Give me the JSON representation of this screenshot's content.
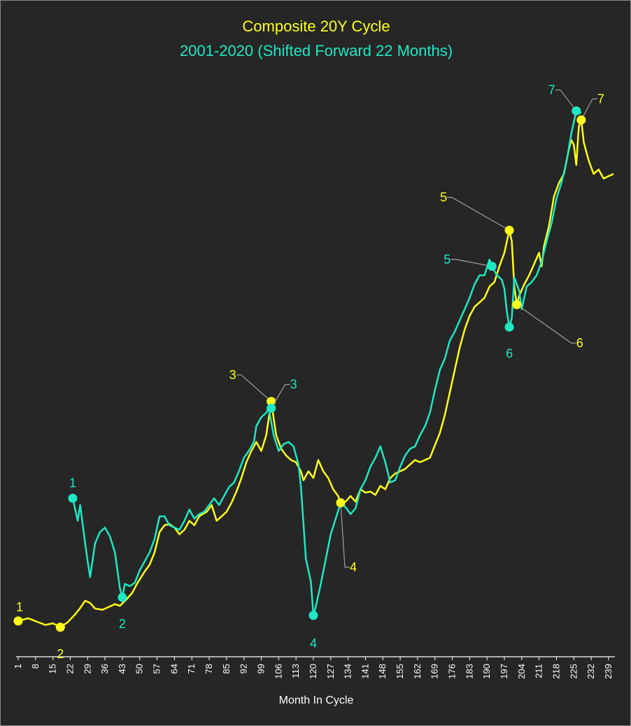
{
  "colors": {
    "background": "#262626",
    "yellow_series": "#ffff1a",
    "teal_series": "#1fe8c4",
    "leader_line": "#a0a0a0",
    "axis": "#ffffff"
  },
  "chart_data": {
    "type": "line",
    "title": "Composite 20Y Cycle",
    "subtitle": "2001-2020 (Shifted Forward 22 Months)",
    "xlabel": "Month In Cycle",
    "ylabel": "",
    "xlim": [
      1,
      241
    ],
    "ylim": [
      0,
      100
    ],
    "y_axis_shown": false,
    "grid": false,
    "legend": "none",
    "x_tick_labels": [
      "1",
      "8",
      "15",
      "22",
      "29",
      "36",
      "43",
      "50",
      "57",
      "64",
      "71",
      "78",
      "85",
      "92",
      "99",
      "106",
      "113",
      "120",
      "127",
      "134",
      "141",
      "148",
      "155",
      "162",
      "169",
      "176",
      "183",
      "190",
      "197",
      "204",
      "211",
      "218",
      "225",
      "232",
      "239"
    ],
    "series": [
      {
        "key": "yellow",
        "color": "#ffff1a",
        "points": [
          [
            1,
            7
          ],
          [
            5,
            7.5
          ],
          [
            9,
            6.8
          ],
          [
            12,
            6.3
          ],
          [
            15,
            6.6
          ],
          [
            18,
            5.9
          ],
          [
            21,
            6.8
          ],
          [
            24,
            8.2
          ],
          [
            26,
            9.3
          ],
          [
            28,
            10.6
          ],
          [
            30,
            10.2
          ],
          [
            32,
            9.2
          ],
          [
            35,
            9.0
          ],
          [
            38,
            9.6
          ],
          [
            40,
            10.0
          ],
          [
            42,
            9.7
          ],
          [
            45,
            11.0
          ],
          [
            47,
            12.0
          ],
          [
            49,
            13.7
          ],
          [
            52,
            15.8
          ],
          [
            54,
            17.0
          ],
          [
            56,
            19.2
          ],
          [
            58,
            22.8
          ],
          [
            60,
            24.0
          ],
          [
            62,
            24.2
          ],
          [
            64,
            23.6
          ],
          [
            66,
            22.4
          ],
          [
            68,
            23.2
          ],
          [
            70,
            24.8
          ],
          [
            72,
            24.0
          ],
          [
            74,
            25.6
          ],
          [
            77,
            26.4
          ],
          [
            79,
            27.6
          ],
          [
            81,
            24.8
          ],
          [
            83,
            25.6
          ],
          [
            85,
            26.4
          ],
          [
            87,
            28.0
          ],
          [
            89,
            30.0
          ],
          [
            91,
            32.4
          ],
          [
            93,
            35.2
          ],
          [
            95,
            37.2
          ],
          [
            97,
            38.8
          ],
          [
            99,
            37.2
          ],
          [
            101,
            40.0
          ],
          [
            103,
            46.0
          ],
          [
            104,
            43.0
          ],
          [
            105,
            40.0
          ],
          [
            107,
            37.6
          ],
          [
            109,
            36.4
          ],
          [
            111,
            35.6
          ],
          [
            113,
            35.2
          ],
          [
            115,
            33.6
          ],
          [
            116,
            32.0
          ],
          [
            118,
            33.6
          ],
          [
            120,
            32.4
          ],
          [
            121,
            34.0
          ],
          [
            122,
            35.6
          ],
          [
            124,
            33.6
          ],
          [
            126,
            32.4
          ],
          [
            128,
            30.4
          ],
          [
            130,
            29.2
          ],
          [
            131,
            28.0
          ],
          [
            133,
            28.2
          ],
          [
            135,
            29.2
          ],
          [
            137,
            28.2
          ],
          [
            139,
            30.4
          ],
          [
            141,
            29.8
          ],
          [
            143,
            30.0
          ],
          [
            145,
            29.4
          ],
          [
            147,
            31.0
          ],
          [
            149,
            30.4
          ],
          [
            151,
            32.4
          ],
          [
            153,
            33.2
          ],
          [
            155,
            33.6
          ],
          [
            157,
            34.0
          ],
          [
            159,
            34.8
          ],
          [
            161,
            35.6
          ],
          [
            163,
            35.2
          ],
          [
            165,
            35.6
          ],
          [
            167,
            36.0
          ],
          [
            169,
            38.2
          ],
          [
            171,
            40.4
          ],
          [
            173,
            43.6
          ],
          [
            175,
            47.6
          ],
          [
            177,
            51.6
          ],
          [
            179,
            55.6
          ],
          [
            181,
            58.8
          ],
          [
            183,
            61.2
          ],
          [
            185,
            62.8
          ],
          [
            187,
            63.6
          ],
          [
            189,
            64.4
          ],
          [
            191,
            66.4
          ],
          [
            193,
            67.2
          ],
          [
            195,
            70.0
          ],
          [
            197,
            72.4
          ],
          [
            199,
            76.4
          ],
          [
            200,
            74.4
          ],
          [
            201,
            66.4
          ],
          [
            202,
            63.2
          ],
          [
            203,
            64.8
          ],
          [
            205,
            66.8
          ],
          [
            207,
            68.4
          ],
          [
            209,
            70.4
          ],
          [
            211,
            72.4
          ],
          [
            212,
            70.0
          ],
          [
            213,
            73.6
          ],
          [
            215,
            77.2
          ],
          [
            217,
            82.4
          ],
          [
            219,
            84.8
          ],
          [
            221,
            86.4
          ],
          [
            223,
            90.8
          ],
          [
            224,
            92.4
          ],
          [
            225,
            91.6
          ],
          [
            226,
            88.0
          ],
          [
            227,
            94.8
          ],
          [
            228,
            96.0
          ],
          [
            229,
            92.0
          ],
          [
            231,
            88.8
          ],
          [
            233,
            86.4
          ],
          [
            235,
            87.2
          ],
          [
            237,
            85.6
          ],
          [
            239,
            86.0
          ],
          [
            241,
            86.4
          ]
        ]
      },
      {
        "key": "teal",
        "color": "#1fe8c4",
        "points": [
          [
            23,
            28.8
          ],
          [
            25,
            24.8
          ],
          [
            26,
            27.6
          ],
          [
            28,
            20.8
          ],
          [
            29,
            17.6
          ],
          [
            30,
            14.8
          ],
          [
            32,
            20.8
          ],
          [
            34,
            22.8
          ],
          [
            36,
            23.6
          ],
          [
            38,
            22.0
          ],
          [
            40,
            19.2
          ],
          [
            42,
            12.8
          ],
          [
            43,
            11.2
          ],
          [
            44,
            13.6
          ],
          [
            46,
            13.2
          ],
          [
            48,
            13.8
          ],
          [
            50,
            16.0
          ],
          [
            52,
            17.6
          ],
          [
            54,
            19.2
          ],
          [
            56,
            21.6
          ],
          [
            58,
            25.6
          ],
          [
            60,
            25.6
          ],
          [
            62,
            24.0
          ],
          [
            64,
            23.6
          ],
          [
            66,
            23.2
          ],
          [
            68,
            24.8
          ],
          [
            70,
            26.8
          ],
          [
            72,
            25.2
          ],
          [
            74,
            26.0
          ],
          [
            76,
            26.4
          ],
          [
            78,
            27.6
          ],
          [
            80,
            28.8
          ],
          [
            82,
            27.6
          ],
          [
            84,
            29.2
          ],
          [
            86,
            30.8
          ],
          [
            88,
            31.6
          ],
          [
            90,
            33.6
          ],
          [
            92,
            36.0
          ],
          [
            94,
            37.2
          ],
          [
            96,
            38.8
          ],
          [
            97,
            41.6
          ],
          [
            99,
            43.2
          ],
          [
            101,
            44.0
          ],
          [
            102,
            44.8
          ],
          [
            104,
            40.0
          ],
          [
            106,
            37.2
          ],
          [
            108,
            38.4
          ],
          [
            110,
            38.8
          ],
          [
            112,
            38.0
          ],
          [
            114,
            34.8
          ],
          [
            115,
            30.8
          ],
          [
            117,
            18.0
          ],
          [
            119,
            14.0
          ],
          [
            120,
            8.0
          ],
          [
            121,
            9.6
          ],
          [
            123,
            13.6
          ],
          [
            125,
            18.0
          ],
          [
            127,
            22.4
          ],
          [
            129,
            25.2
          ],
          [
            131,
            28.0
          ],
          [
            133,
            27.2
          ],
          [
            135,
            26.0
          ],
          [
            137,
            27.0
          ],
          [
            139,
            30.4
          ],
          [
            141,
            32.0
          ],
          [
            143,
            34.4
          ],
          [
            145,
            36.0
          ],
          [
            147,
            38.0
          ],
          [
            149,
            35.2
          ],
          [
            151,
            31.6
          ],
          [
            153,
            32.0
          ],
          [
            155,
            34.4
          ],
          [
            157,
            36.4
          ],
          [
            159,
            37.6
          ],
          [
            161,
            38.0
          ],
          [
            163,
            40.0
          ],
          [
            165,
            41.6
          ],
          [
            167,
            44.0
          ],
          [
            169,
            48.0
          ],
          [
            171,
            51.6
          ],
          [
            173,
            53.6
          ],
          [
            175,
            56.8
          ],
          [
            177,
            58.4
          ],
          [
            179,
            60.4
          ],
          [
            181,
            62.4
          ],
          [
            183,
            64.4
          ],
          [
            185,
            66.8
          ],
          [
            187,
            68.4
          ],
          [
            189,
            68.4
          ],
          [
            191,
            71.2
          ],
          [
            192,
            70.0
          ],
          [
            194,
            68.4
          ],
          [
            196,
            67.6
          ],
          [
            197,
            66.0
          ],
          [
            198,
            62.0
          ],
          [
            199,
            59.2
          ],
          [
            200,
            60.8
          ],
          [
            201,
            68.0
          ],
          [
            203,
            65.6
          ],
          [
            204,
            62.4
          ],
          [
            206,
            66.4
          ],
          [
            208,
            67.2
          ],
          [
            210,
            68.4
          ],
          [
            212,
            70.8
          ],
          [
            214,
            74.4
          ],
          [
            216,
            77.6
          ],
          [
            218,
            82.0
          ],
          [
            220,
            84.8
          ],
          [
            222,
            88.4
          ],
          [
            224,
            93.6
          ],
          [
            226,
            97.6
          ],
          [
            228,
            97.2
          ]
        ]
      }
    ],
    "markers": [
      {
        "series": "yellow",
        "label": "1",
        "x": 1,
        "y": 7.0
      },
      {
        "series": "yellow",
        "label": "2",
        "x": 18,
        "y": 5.9
      },
      {
        "series": "yellow",
        "label": "3",
        "x": 103,
        "y": 46.0
      },
      {
        "series": "yellow",
        "label": "4",
        "x": 131,
        "y": 28.0
      },
      {
        "series": "yellow",
        "label": "5",
        "x": 199,
        "y": 76.4
      },
      {
        "series": "yellow",
        "label": "6",
        "x": 202,
        "y": 63.2
      },
      {
        "series": "yellow",
        "label": "7",
        "x": 228,
        "y": 96.0
      },
      {
        "series": "teal",
        "label": "1",
        "x": 23,
        "y": 28.8
      },
      {
        "series": "teal",
        "label": "2",
        "x": 43,
        "y": 11.2
      },
      {
        "series": "teal",
        "label": "3",
        "x": 103,
        "y": 44.8
      },
      {
        "series": "teal",
        "label": "4",
        "x": 120,
        "y": 8.0
      },
      {
        "series": "teal",
        "label": "5",
        "x": 192,
        "y": 70.0
      },
      {
        "series": "teal",
        "label": "6",
        "x": 199,
        "y": 59.2
      },
      {
        "series": "teal",
        "label": "7",
        "x": 226,
        "y": 97.6
      }
    ]
  }
}
